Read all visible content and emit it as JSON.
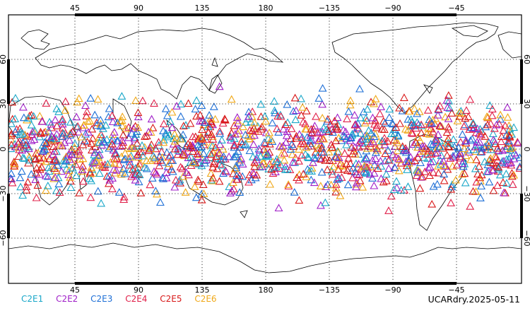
{
  "map": {
    "projection": "cylindrical-equidistant",
    "lon_ticks": [
      "45",
      "90",
      "135",
      "180",
      "−135",
      "−90",
      "−45"
    ],
    "lat_ticks": [
      "60",
      "30",
      "0",
      "−30",
      "−60"
    ],
    "grid": "dotted",
    "land_outline_color": "#000000",
    "observation_band_lat": [
      -45,
      45
    ],
    "marker_shape": "triangle-outline"
  },
  "legend": {
    "items": [
      {
        "label": "C2E1",
        "color": "#1aa7c9"
      },
      {
        "label": "C2E2",
        "color": "#a020c8"
      },
      {
        "label": "C2E3",
        "color": "#1e6fd6"
      },
      {
        "label": "C2E4",
        "color": "#e0204a"
      },
      {
        "label": "C2E5",
        "color": "#d81818"
      },
      {
        "label": "C2E6",
        "color": "#f0a818"
      }
    ]
  },
  "stamp": "UCARdry.2025-05-11"
}
